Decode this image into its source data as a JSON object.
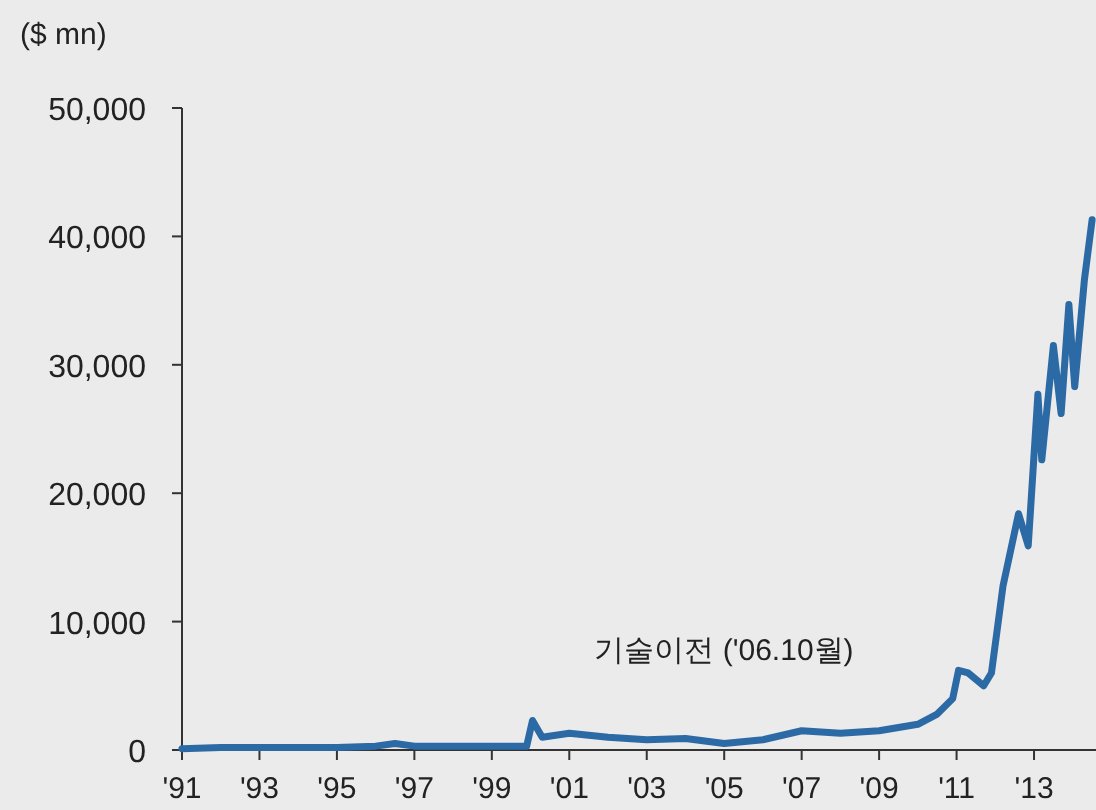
{
  "chart_data": {
    "type": "line",
    "ylabel": "($ mn)",
    "annotations": [
      "기술이전 ('06.10월)"
    ],
    "x": [
      1991,
      1992,
      1993,
      1994,
      1995,
      1996,
      1996.5,
      1997,
      1998,
      1999,
      1999.9,
      2000.05,
      2000.3,
      2001,
      2002,
      2003,
      2004,
      2005,
      2006,
      2007,
      2008,
      2009,
      2010,
      2010.5,
      2010.9,
      2011.05,
      2011.3,
      2011.7,
      2011.9,
      2012.2,
      2012.6,
      2012.85,
      2013.1,
      2013.2,
      2013.5,
      2013.7,
      2013.9,
      2014.05,
      2014.3,
      2014.5
    ],
    "series": [
      {
        "color": "#2c6aa6",
        "values": [
          100,
          200,
          200,
          200,
          200,
          300,
          500,
          300,
          300,
          300,
          300,
          2300,
          1000,
          1300,
          1000,
          800,
          900,
          500,
          800,
          1500,
          1300,
          1500,
          2000,
          2800,
          4000,
          6200,
          6000,
          5000,
          6000,
          12800,
          18400,
          15900,
          27700,
          22600,
          31500,
          26200,
          34700,
          28300,
          36600,
          41300
        ]
      }
    ],
    "xlim": [
      1991,
      2014.6
    ],
    "xticks": [
      {
        "value": 1991,
        "label": "'91"
      },
      {
        "value": 1993,
        "label": "'93"
      },
      {
        "value": 1995,
        "label": "'95"
      },
      {
        "value": 1997,
        "label": "'97"
      },
      {
        "value": 1999,
        "label": "'99"
      },
      {
        "value": 2001,
        "label": "'01"
      },
      {
        "value": 2003,
        "label": "'03"
      },
      {
        "value": 2005,
        "label": "'05"
      },
      {
        "value": 2007,
        "label": "'07"
      },
      {
        "value": 2009,
        "label": "'09"
      },
      {
        "value": 2011,
        "label": "'11"
      },
      {
        "value": 2013,
        "label": "'13"
      }
    ],
    "ylim": [
      0,
      50000
    ],
    "yticks": [
      {
        "value": 0,
        "label": "0"
      },
      {
        "value": 10000,
        "label": "10,000"
      },
      {
        "value": 20000,
        "label": "20,000"
      },
      {
        "value": 30000,
        "label": "30,000"
      },
      {
        "value": 40000,
        "label": "40,000"
      },
      {
        "value": 50000,
        "label": "50,000"
      }
    ],
    "grid": false,
    "line_style": "solid"
  }
}
